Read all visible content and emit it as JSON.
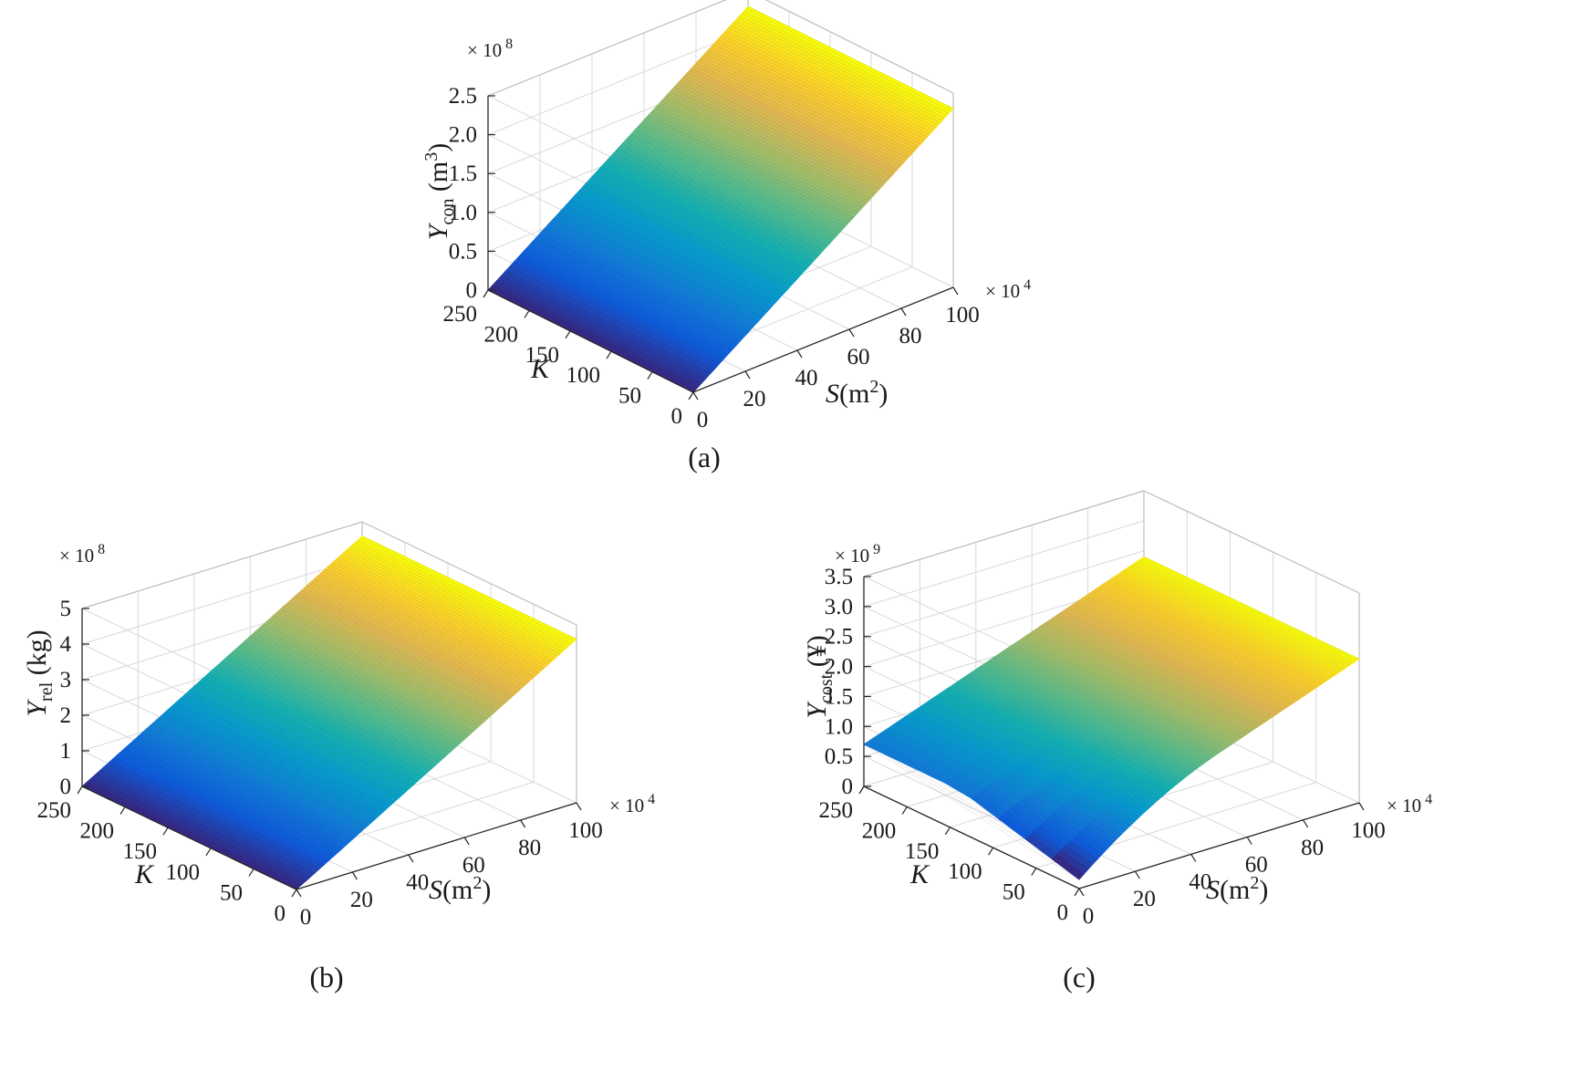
{
  "figure": {
    "panels": [
      {
        "id": "a",
        "caption": "(a)"
      },
      {
        "id": "b",
        "caption": "(b)"
      },
      {
        "id": "c",
        "caption": "(c)"
      }
    ]
  },
  "chart_data": [
    {
      "panel": "a",
      "type": "surface",
      "caption": "(a)",
      "x": {
        "label_symbol": "S",
        "label_unit": "(m",
        "label_sup": "2",
        "label_tail": ")",
        "multiplier_text": "× 10",
        "multiplier_exp": "4",
        "ticks": [
          0,
          20,
          40,
          60,
          80,
          100
        ],
        "range": [
          0,
          100
        ]
      },
      "y": {
        "label_symbol": "K",
        "ticks": [
          0,
          50,
          100,
          150,
          200,
          250
        ],
        "range": [
          0,
          250
        ]
      },
      "z": {
        "label_symbol": "Y",
        "label_sub": "con",
        "label_unit": " (m",
        "label_sup": "3",
        "label_tail": ")",
        "multiplier_text": "× 10",
        "multiplier_exp": "8",
        "ticks": [
          "0",
          "0.5",
          "1.0",
          "1.5",
          "2.0",
          "2.5"
        ],
        "range": [
          0,
          2.5
        ]
      },
      "surface": {
        "shape": "linear in S",
        "z_at_S0": 0,
        "z_at_S100": 2.3
      },
      "colormap": "parula",
      "grid": true
    },
    {
      "panel": "b",
      "type": "surface",
      "caption": "(b)",
      "x": {
        "label_symbol": "S",
        "label_unit": "(m",
        "label_sup": "2",
        "label_tail": ")",
        "multiplier_text": "× 10",
        "multiplier_exp": "4",
        "ticks": [
          0,
          20,
          40,
          60,
          80,
          100
        ],
        "range": [
          0,
          100
        ]
      },
      "y": {
        "label_symbol": "K",
        "ticks": [
          0,
          50,
          100,
          150,
          200,
          250
        ],
        "range": [
          0,
          250
        ]
      },
      "z": {
        "label_symbol": "Y",
        "label_sub": "rel",
        "label_unit": " (kg)",
        "label_sup": "",
        "label_tail": "",
        "multiplier_text": "× 10",
        "multiplier_exp": "8",
        "ticks": [
          "0",
          "1",
          "2",
          "3",
          "4",
          "5"
        ],
        "range": [
          0,
          5
        ]
      },
      "surface": {
        "shape": "linear in S",
        "z_at_S0": 0,
        "z_at_S100": 4.6
      },
      "colormap": "parula",
      "grid": true
    },
    {
      "panel": "c",
      "type": "surface",
      "caption": "(c)",
      "x": {
        "label_symbol": "S",
        "label_unit": "(m",
        "label_sup": "2",
        "label_tail": ")",
        "multiplier_text": "× 10",
        "multiplier_exp": "4",
        "ticks": [
          0,
          20,
          40,
          60,
          80,
          100
        ],
        "range": [
          0,
          100
        ]
      },
      "y": {
        "label_symbol": "K",
        "ticks": [
          0,
          50,
          100,
          150,
          200,
          250
        ],
        "range": [
          0,
          250
        ]
      },
      "z": {
        "label_symbol": "Y",
        "label_sub": "cost",
        "label_unit": " (¥)",
        "label_sup": "",
        "label_tail": "",
        "multiplier_text": "× 10",
        "multiplier_exp": "9",
        "ticks": [
          "0",
          "0.5",
          "1.0",
          "1.5",
          "2.0",
          "2.5",
          "3.0",
          "3.5"
        ],
        "range": [
          0,
          3.5
        ]
      },
      "surface": {
        "shape": "rises linearly in S, bends up from a floor near small S",
        "z_at_S0_K0": 0.7,
        "z_at_S0_K250": 0.7,
        "z_at_S100": 2.4
      },
      "colormap": "parula",
      "grid": true
    }
  ]
}
